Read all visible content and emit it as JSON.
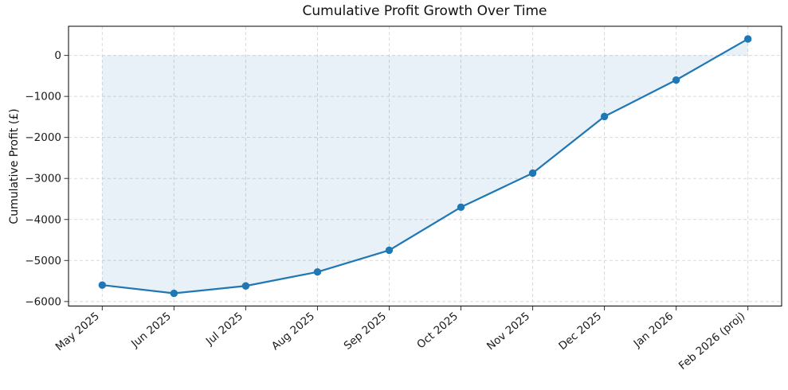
{
  "chart_data": {
    "type": "line",
    "title": "Cumulative Profit Growth Over Time",
    "xlabel": "",
    "ylabel": "Cumulative Profit (£)",
    "categories": [
      "May 2025",
      "Jun 2025",
      "Jul 2025",
      "Aug 2025",
      "Sep 2025",
      "Oct 2025",
      "Nov 2025",
      "Dec 2025",
      "Jan 2026",
      "Feb 2026 (proj)"
    ],
    "series": [
      {
        "name": "Cumulative Profit",
        "values": [
          -5600,
          -5800,
          -5620,
          -5280,
          -4750,
          -3700,
          -2870,
          -1490,
          -600,
          400
        ]
      }
    ],
    "yticks": [
      {
        "value": 0,
        "label": "0"
      },
      {
        "value": -1000,
        "label": "−1000"
      },
      {
        "value": -2000,
        "label": "−2000"
      },
      {
        "value": -3000,
        "label": "−3000"
      },
      {
        "value": -4000,
        "label": "−4000"
      },
      {
        "value": -5000,
        "label": "−5000"
      },
      {
        "value": -6000,
        "label": "−6000"
      }
    ],
    "ylim": [
      -6110,
      710
    ],
    "xlim": [
      -0.47,
      9.47
    ],
    "grid": true,
    "grid_style": "dashed",
    "legend": "none",
    "fill_between_line_and_zero": true,
    "marker": "circle",
    "x_tick_rotation_deg": 40,
    "colors": {
      "line": "#1f77b4",
      "marker": "#1f77b4",
      "fill": "rgba(31,119,180,0.10)",
      "grid": "#d9d9d9",
      "frame": "#000000",
      "tick": "#333333",
      "text": "#1a1a1a"
    }
  }
}
